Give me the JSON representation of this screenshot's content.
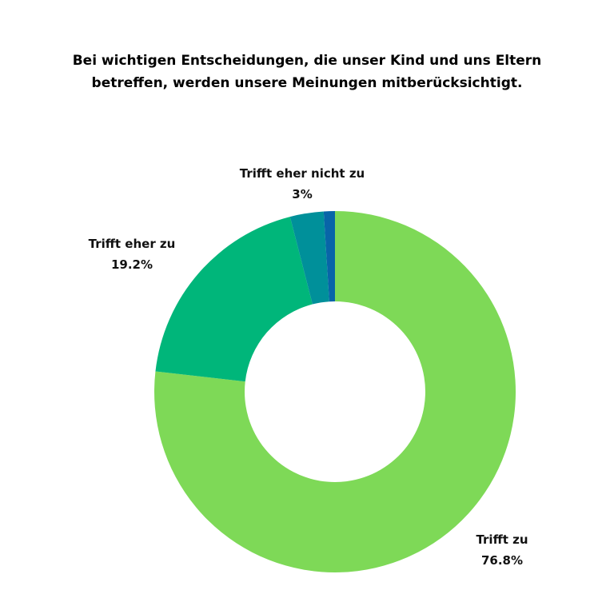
{
  "chart_data": {
    "type": "pie",
    "donut": true,
    "title_lines": [
      "Bei wichtigen Entscheidungen, die unser Kind und uns Eltern",
      "betreffen, werden unsere Meinungen mitberücksichtigt."
    ],
    "series": [
      {
        "name": "Trifft zu",
        "value": 76.8,
        "label": "76.8%",
        "color": "#7ed957"
      },
      {
        "name": "Trifft eher zu",
        "value": 19.2,
        "label": "19.2%",
        "color": "#00b67a"
      },
      {
        "name": "Trifft eher nicht zu",
        "value": 3.0,
        "label": "3%",
        "color": "#00909a"
      },
      {
        "name": "",
        "value": 1.0,
        "label": "",
        "color": "#0865a8"
      }
    ],
    "legend": "none"
  }
}
